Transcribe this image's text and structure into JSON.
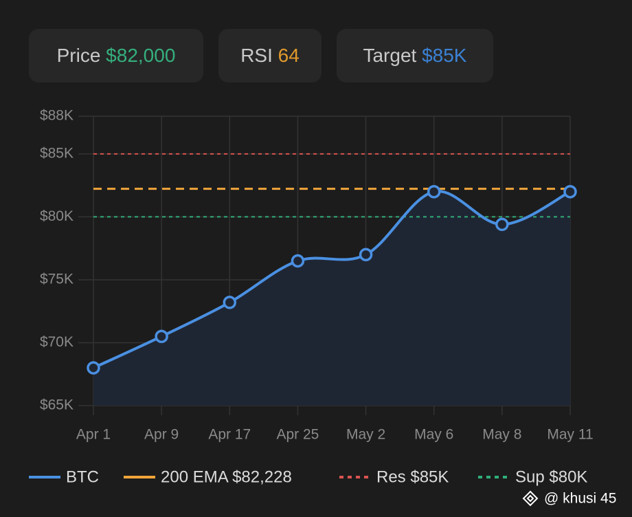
{
  "cards": [
    {
      "label": "Price",
      "value": "$82,000",
      "color": "#35b07e"
    },
    {
      "label": "RSI",
      "value": "64",
      "color": "#e09a2c"
    },
    {
      "label": "Target",
      "value": "$85K",
      "color": "#3b82d6"
    }
  ],
  "chart_data": {
    "type": "line",
    "categories": [
      "Apr 1",
      "Apr 9",
      "Apr 17",
      "Apr 25",
      "May 2",
      "May 6",
      "May 8",
      "May 11"
    ],
    "series": [
      {
        "name": "BTC",
        "color": "#4a90e2",
        "values": [
          68000,
          70500,
          73200,
          76500,
          77000,
          82000,
          79400,
          82000
        ]
      }
    ],
    "reference_lines": [
      {
        "name": "200 EMA $82,228",
        "value": 82228,
        "color": "#f0a53a",
        "dashed": "wide"
      },
      {
        "name": "Res $85K",
        "value": 85000,
        "color": "#d9534f",
        "dashed": "fine"
      },
      {
        "name": "Sup $80K",
        "value": 80000,
        "color": "#2fae7a",
        "dashed": "fine"
      }
    ],
    "ylim": [
      65000,
      88000
    ],
    "yticks": [
      {
        "value": 65000,
        "label": "$65K"
      },
      {
        "value": 70000,
        "label": "$70K"
      },
      {
        "value": 75000,
        "label": "$75K"
      },
      {
        "value": 80000,
        "label": "$80K"
      },
      {
        "value": 85000,
        "label": "$85K"
      },
      {
        "value": 88000,
        "label": "$88K"
      }
    ],
    "grid": true
  },
  "watermark": "@ khusi 45"
}
